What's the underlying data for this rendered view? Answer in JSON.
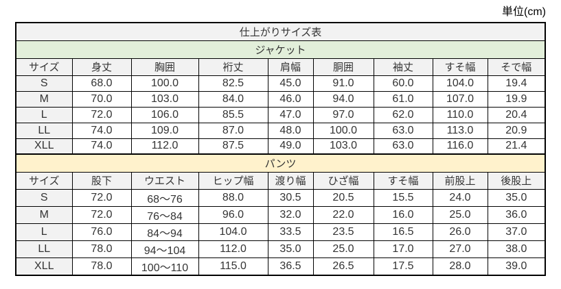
{
  "unit_label": "単位(cm)",
  "chart_data": {
    "type": "table",
    "title": "仕上がりサイズ表",
    "unit_note": "単位(cm)",
    "sections": [
      {
        "name": "ジャケット",
        "columns": [
          "サイズ",
          "身丈",
          "胸囲",
          "裄丈",
          "肩幅",
          "胴囲",
          "袖丈",
          "すそ幅",
          "そで幅"
        ],
        "rows": [
          [
            "S",
            "68.0",
            "100.0",
            "82.5",
            "45.0",
            "91.0",
            "60.0",
            "104.0",
            "19.4"
          ],
          [
            "M",
            "70.0",
            "103.0",
            "84.0",
            "46.0",
            "94.0",
            "61.0",
            "107.0",
            "19.9"
          ],
          [
            "L",
            "72.0",
            "106.0",
            "85.5",
            "47.0",
            "97.0",
            "62.0",
            "110.0",
            "20.4"
          ],
          [
            "LL",
            "74.0",
            "109.0",
            "87.0",
            "48.0",
            "100.0",
            "63.0",
            "113.0",
            "20.9"
          ],
          [
            "XLL",
            "74.0",
            "112.0",
            "87.5",
            "49.0",
            "103.0",
            "63.0",
            "116.0",
            "21.4"
          ]
        ]
      },
      {
        "name": "パンツ",
        "columns": [
          "サイズ",
          "股下",
          "ウエスト",
          "ヒップ幅",
          "渡り幅",
          "ひざ幅",
          "すそ幅",
          "前股上",
          "後股上"
        ],
        "rows": [
          [
            "S",
            "72.0",
            "68～76",
            "88.0",
            "30.5",
            "20.5",
            "15.5",
            "24.0",
            "35.0"
          ],
          [
            "M",
            "72.0",
            "76～84",
            "96.0",
            "32.0",
            "22.0",
            "16.0",
            "25.0",
            "36.0"
          ],
          [
            "L",
            "76.0",
            "84～94",
            "104.0",
            "33.5",
            "23.5",
            "16.5",
            "26.0",
            "37.0"
          ],
          [
            "LL",
            "78.0",
            "94～104",
            "112.0",
            "35.0",
            "25.0",
            "17.0",
            "27.0",
            "38.0"
          ],
          [
            "XLL",
            "78.0",
            "100～110",
            "115.0",
            "36.5",
            "26.5",
            "17.5",
            "28.0",
            "39.0"
          ]
        ]
      }
    ]
  },
  "colors": {
    "title_bg": "#F2F2F2",
    "jacket_section_bg": "#E2EFDA",
    "pants_section_bg": "#FFF2CC",
    "header_bg": "#F2F2F2",
    "border": "#000000",
    "text": "#333333"
  }
}
